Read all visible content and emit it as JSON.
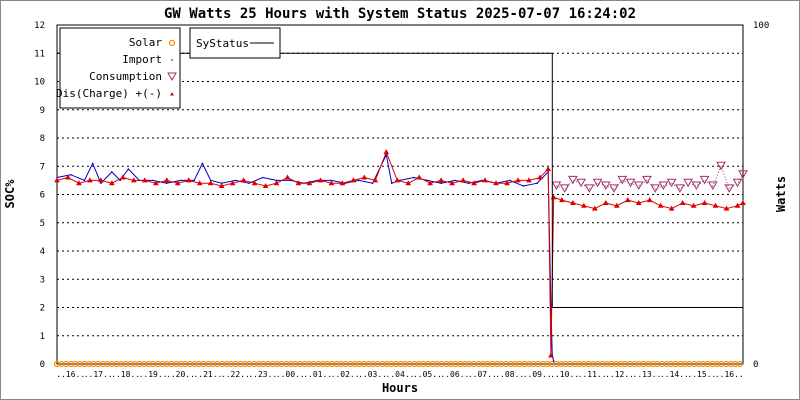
{
  "chart_data": {
    "type": "line",
    "title": "GW Watts 25 Hours with System Status 2025-07-07 16:24:02",
    "xlabel": "Hours",
    "ylabel_left": "SOC%",
    "ylabel_right": "Watts",
    "yleft_ticks": [
      "0",
      "1",
      "2",
      "3",
      "4",
      "5",
      "6",
      "7",
      "8",
      "9",
      "10",
      "11",
      "12"
    ],
    "yleft_range": [
      0,
      12
    ],
    "yright_ticks": [
      "0",
      "100"
    ],
    "x_range": [
      0,
      25
    ],
    "x_tick_labels": [
      "..16..",
      "..17..",
      "..18..",
      "..19..",
      "..20..",
      "..21..",
      "..22..",
      "..23..",
      "..00..",
      "..01..",
      "..02..",
      "..03..",
      "..04..",
      "..05..",
      "..06..",
      "..07..",
      "..08..",
      "..09..",
      "..10..",
      "..11..",
      "..12..",
      "..13..",
      "..14..",
      "..15..",
      "..16.."
    ],
    "grid": true,
    "legend_position": "top-left",
    "series": [
      {
        "name": "Solar",
        "color": "#ff8c00",
        "marker": "circle",
        "line": false,
        "x": [
          0,
          25
        ],
        "y": [
          0,
          0
        ]
      },
      {
        "name": "Import",
        "color": "#0000cc",
        "marker": "dot",
        "line": true,
        "x": [
          0.0,
          0.5,
          1.0,
          1.3,
          1.6,
          2.0,
          2.3,
          2.6,
          3.0,
          3.5,
          4.0,
          4.5,
          5.0,
          5.3,
          5.6,
          6.0,
          6.5,
          7.0,
          7.5,
          8.0,
          8.5,
          9.0,
          9.5,
          10.0,
          10.5,
          11.0,
          11.5,
          12.0,
          12.2,
          12.5,
          13.0,
          13.5,
          14.0,
          14.5,
          15.0,
          15.5,
          16.0,
          16.5,
          17.0,
          17.5,
          17.9,
          18.0,
          18.05,
          18.1
        ],
        "y": [
          6.6,
          6.7,
          6.5,
          7.1,
          6.4,
          6.8,
          6.5,
          6.9,
          6.5,
          6.5,
          6.4,
          6.5,
          6.5,
          7.1,
          6.5,
          6.4,
          6.5,
          6.4,
          6.6,
          6.5,
          6.5,
          6.4,
          6.5,
          6.5,
          6.4,
          6.5,
          6.4,
          7.4,
          6.4,
          6.5,
          6.6,
          6.5,
          6.4,
          6.5,
          6.4,
          6.5,
          6.4,
          6.5,
          6.3,
          6.4,
          6.8,
          2.0,
          0.3,
          0.1
        ]
      },
      {
        "name": "Consumption",
        "color": "#a0306a",
        "marker": "triangle-down",
        "line": false,
        "x": [
          18.2,
          18.5,
          18.8,
          19.1,
          19.4,
          19.7,
          20.0,
          20.3,
          20.6,
          20.9,
          21.2,
          21.5,
          21.8,
          22.1,
          22.4,
          22.7,
          23.0,
          23.3,
          23.6,
          23.9,
          24.2,
          24.5,
          24.8,
          25.0
        ],
        "y": [
          6.3,
          6.2,
          6.5,
          6.4,
          6.2,
          6.4,
          6.3,
          6.2,
          6.5,
          6.4,
          6.3,
          6.5,
          6.2,
          6.3,
          6.4,
          6.2,
          6.4,
          6.3,
          6.5,
          6.3,
          7.0,
          6.2,
          6.4,
          6.7
        ]
      },
      {
        "name": "Dis(Charge) +(-)",
        "color": "#dd0000",
        "marker": "dot-triangle",
        "line": true,
        "x": [
          0.0,
          0.4,
          0.8,
          1.2,
          1.6,
          2.0,
          2.4,
          2.8,
          3.2,
          3.6,
          4.0,
          4.4,
          4.8,
          5.2,
          5.6,
          6.0,
          6.4,
          6.8,
          7.2,
          7.6,
          8.0,
          8.4,
          8.8,
          9.2,
          9.6,
          10.0,
          10.4,
          10.8,
          11.2,
          11.6,
          12.0,
          12.4,
          12.8,
          13.2,
          13.6,
          14.0,
          14.4,
          14.8,
          15.2,
          15.6,
          16.0,
          16.4,
          16.8,
          17.2,
          17.6,
          17.9,
          18.0,
          18.1,
          18.4,
          18.8,
          19.2,
          19.6,
          20.0,
          20.4,
          20.8,
          21.2,
          21.6,
          22.0,
          22.4,
          22.8,
          23.2,
          23.6,
          24.0,
          24.4,
          24.8,
          25.0
        ],
        "y": [
          6.5,
          6.6,
          6.4,
          6.5,
          6.5,
          6.4,
          6.6,
          6.5,
          6.5,
          6.4,
          6.5,
          6.4,
          6.5,
          6.4,
          6.4,
          6.3,
          6.4,
          6.5,
          6.4,
          6.3,
          6.4,
          6.6,
          6.4,
          6.4,
          6.5,
          6.4,
          6.4,
          6.5,
          6.6,
          6.5,
          7.5,
          6.5,
          6.4,
          6.6,
          6.4,
          6.5,
          6.4,
          6.5,
          6.4,
          6.5,
          6.4,
          6.4,
          6.5,
          6.5,
          6.6,
          6.9,
          0.3,
          5.9,
          5.8,
          5.7,
          5.6,
          5.5,
          5.7,
          5.6,
          5.8,
          5.7,
          5.8,
          5.6,
          5.5,
          5.7,
          5.6,
          5.7,
          5.6,
          5.5,
          5.6,
          5.7
        ]
      },
      {
        "name": "SyStatus",
        "color": "#000000",
        "marker": "none",
        "line": true,
        "step": true,
        "x": [
          0,
          18.05,
          18.05,
          25
        ],
        "y": [
          11,
          11,
          2,
          2
        ]
      }
    ]
  }
}
